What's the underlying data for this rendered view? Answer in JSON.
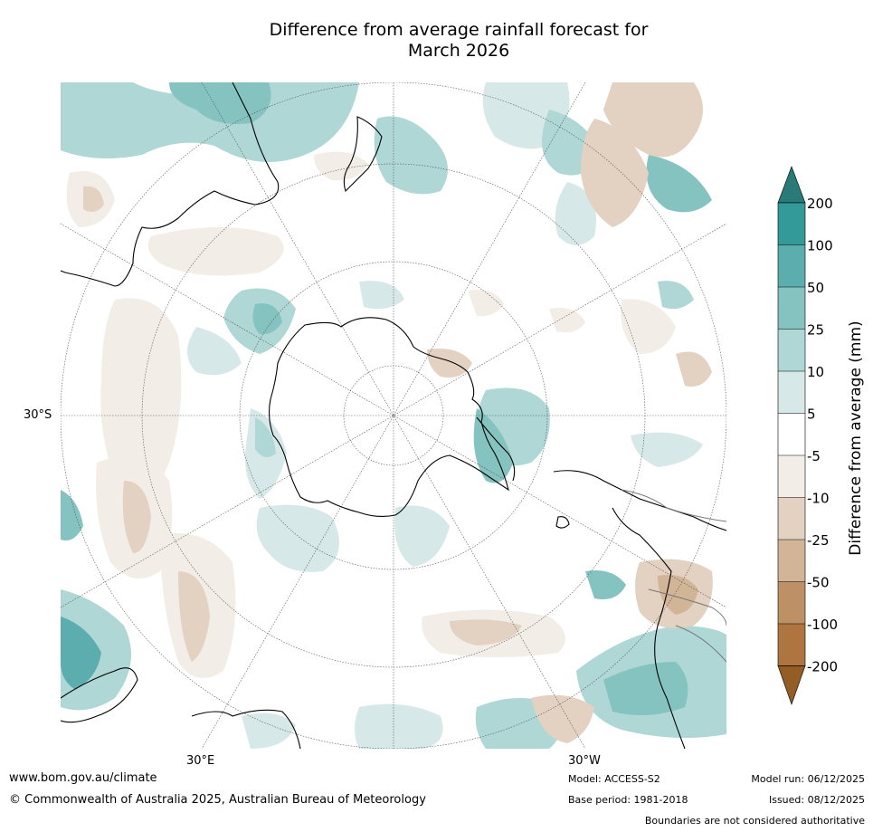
{
  "title": {
    "line1": "Difference from average rainfall forecast for",
    "line2": "March 2026"
  },
  "map": {
    "lat_label": "30°S",
    "lon_labels": [
      "30°E",
      "30°W"
    ]
  },
  "colorbar": {
    "title": "Difference from average (mm)",
    "tick_labels": [
      "200",
      "100",
      "50",
      "25",
      "10",
      "5",
      "-5",
      "-10",
      "-25",
      "-50",
      "-100",
      "-200"
    ],
    "colors": {
      "over": "#2a7a79",
      "b100_200": "#339a99",
      "b50_100": "#5cadad",
      "b25_50": "#85c3c1",
      "b10_25": "#aed7d5",
      "b5_10": "#d6e9e8",
      "neutral": "#ffffff",
      "n5_10": "#f2ede7",
      "n10_25": "#e3d1c2",
      "n25_50": "#d2b497",
      "n50_100": "#be9066",
      "n100_200": "#ae7540",
      "under": "#935d25"
    }
  },
  "footer": {
    "website": "www.bom.gov.au/climate",
    "copyright": "© Commonwealth of Australia 2025, Australian Bureau of Meteorology",
    "model": "Model: ACCESS-S2",
    "base_period": "Base period: 1981-2018",
    "model_run": "Model run: 06/12/2025",
    "issued": "Issued: 08/12/2025",
    "disclaimer": "Boundaries are not considered authoritative"
  }
}
